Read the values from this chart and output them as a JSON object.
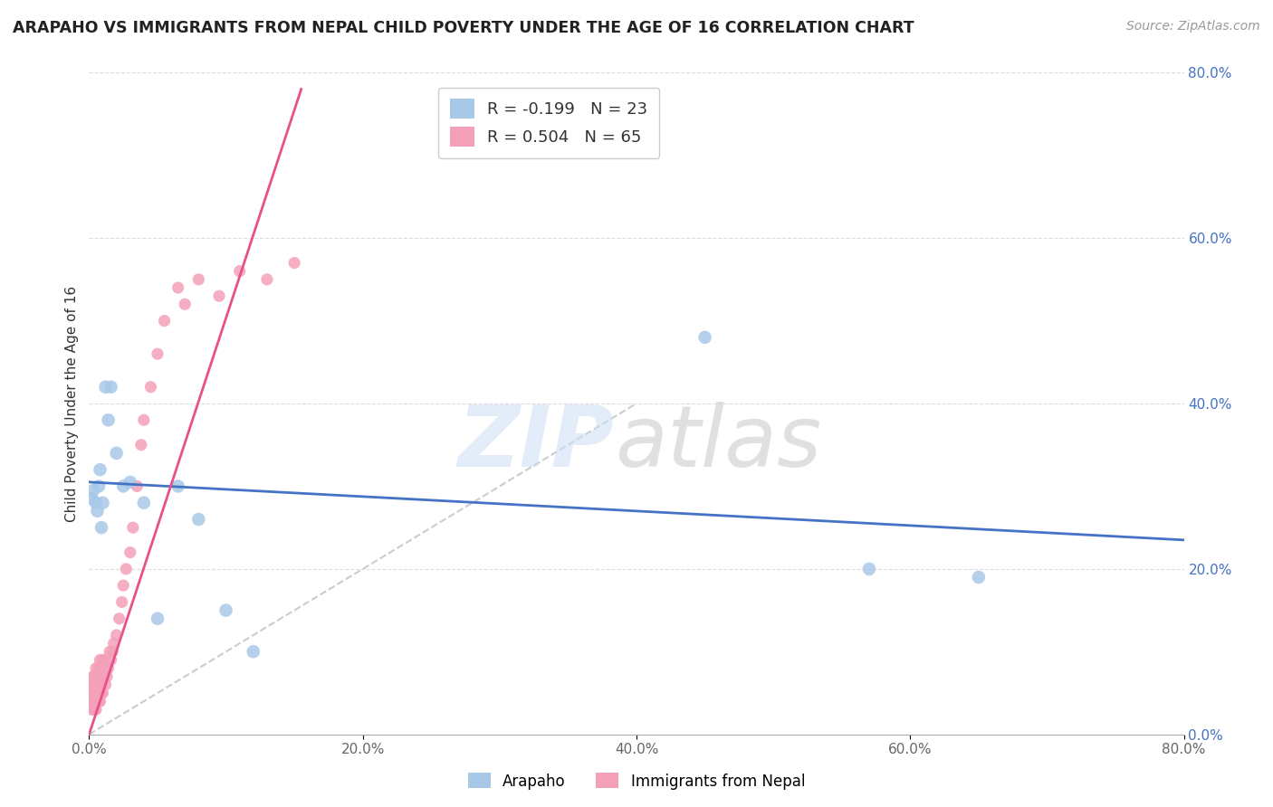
{
  "title": "ARAPAHO VS IMMIGRANTS FROM NEPAL CHILD POVERTY UNDER THE AGE OF 16 CORRELATION CHART",
  "source": "Source: ZipAtlas.com",
  "ylabel": "Child Poverty Under the Age of 16",
  "legend_label_blue": "Arapaho",
  "legend_label_pink": "Immigrants from Nepal",
  "R_blue": -0.199,
  "N_blue": 23,
  "R_pink": 0.504,
  "N_pink": 65,
  "blue_color": "#a8c8e8",
  "pink_color": "#f4a0b8",
  "blue_line_color": "#4472c4",
  "pink_line_color": "#e8508a",
  "ref_line_color": "#cccccc",
  "xmin": 0.0,
  "xmax": 0.8,
  "ymin": 0.0,
  "ymax": 0.8,
  "xtick_vals": [
    0.0,
    0.2,
    0.4,
    0.6,
    0.8
  ],
  "ytick_vals": [
    0.0,
    0.2,
    0.4,
    0.6,
    0.8
  ],
  "arapaho_x": [
    0.002,
    0.003,
    0.005,
    0.006,
    0.007,
    0.008,
    0.009,
    0.01,
    0.012,
    0.014,
    0.016,
    0.02,
    0.025,
    0.03,
    0.04,
    0.05,
    0.065,
    0.08,
    0.1,
    0.12,
    0.45,
    0.57,
    0.65
  ],
  "arapaho_y": [
    0.285,
    0.295,
    0.28,
    0.27,
    0.3,
    0.32,
    0.25,
    0.28,
    0.42,
    0.38,
    0.42,
    0.34,
    0.3,
    0.305,
    0.28,
    0.14,
    0.3,
    0.26,
    0.15,
    0.1,
    0.48,
    0.2,
    0.19
  ],
  "nepal_x": [
    0.001,
    0.002,
    0.002,
    0.002,
    0.003,
    0.003,
    0.003,
    0.003,
    0.004,
    0.004,
    0.004,
    0.004,
    0.004,
    0.005,
    0.005,
    0.005,
    0.005,
    0.005,
    0.006,
    0.006,
    0.006,
    0.006,
    0.007,
    0.007,
    0.007,
    0.007,
    0.008,
    0.008,
    0.008,
    0.008,
    0.009,
    0.009,
    0.009,
    0.01,
    0.01,
    0.01,
    0.011,
    0.012,
    0.012,
    0.013,
    0.014,
    0.015,
    0.016,
    0.017,
    0.018,
    0.02,
    0.022,
    0.024,
    0.025,
    0.027,
    0.03,
    0.032,
    0.035,
    0.038,
    0.04,
    0.045,
    0.05,
    0.055,
    0.065,
    0.07,
    0.08,
    0.095,
    0.11,
    0.13,
    0.15
  ],
  "nepal_y": [
    0.04,
    0.05,
    0.03,
    0.06,
    0.04,
    0.05,
    0.06,
    0.07,
    0.03,
    0.04,
    0.05,
    0.06,
    0.07,
    0.03,
    0.04,
    0.05,
    0.06,
    0.08,
    0.04,
    0.05,
    0.06,
    0.07,
    0.04,
    0.05,
    0.06,
    0.08,
    0.04,
    0.05,
    0.07,
    0.09,
    0.05,
    0.06,
    0.08,
    0.05,
    0.07,
    0.09,
    0.08,
    0.06,
    0.09,
    0.07,
    0.08,
    0.1,
    0.09,
    0.1,
    0.11,
    0.12,
    0.14,
    0.16,
    0.18,
    0.2,
    0.22,
    0.25,
    0.3,
    0.35,
    0.38,
    0.42,
    0.46,
    0.5,
    0.54,
    0.52,
    0.55,
    0.53,
    0.56,
    0.55,
    0.57
  ],
  "blue_trend_x": [
    0.0,
    0.8
  ],
  "blue_trend_y": [
    0.305,
    0.235
  ],
  "pink_trend_x": [
    0.0,
    0.155
  ],
  "pink_trend_y": [
    0.0,
    0.78
  ],
  "ref_line_x": [
    0.0,
    0.4
  ],
  "ref_line_y": [
    0.0,
    0.4
  ]
}
